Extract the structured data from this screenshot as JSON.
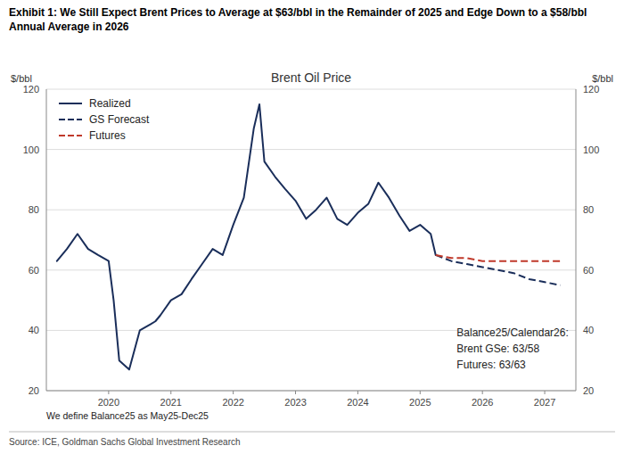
{
  "chart_data": {
    "type": "line",
    "title": "Exhibit 1: We Still Expect Brent Prices to Average at $63/bbl in the Remainder of 2025 and Edge Down to a $58/bbl Annual Average in 2026",
    "subtitle": "Brent Oil Price",
    "ylabel": "$/bbl",
    "y2label": "$/bbl",
    "annotations": [
      "Balance25/Calendar26:",
      "Brent GSe: 63/58",
      "Futures: 63/63"
    ],
    "footnote": "We define Balance25 as May25-Dec25",
    "source": "Source: ICE, Goldman Sachs Global Investment Research",
    "xlim": [
      2019.0,
      2027.5
    ],
    "xticks": [
      2020,
      2021,
      2022,
      2023,
      2024,
      2025,
      2026,
      2027
    ],
    "ylim": [
      20,
      120
    ],
    "yticks": [
      20,
      40,
      60,
      80,
      100,
      120
    ],
    "y2lim": [
      20,
      120
    ],
    "y2ticks": [
      20,
      40,
      60,
      80,
      100,
      120
    ],
    "grid": true,
    "legend": "upper left",
    "series": [
      {
        "name": "Realized",
        "color": "#1a2e5a",
        "line_style": "solid",
        "x": [
          2019.17,
          2019.33,
          2019.5,
          2019.67,
          2019.83,
          2020.0,
          2020.08,
          2020.17,
          2020.33,
          2020.5,
          2020.67,
          2020.75,
          2020.83,
          2021.0,
          2021.17,
          2021.33,
          2021.5,
          2021.67,
          2021.83,
          2022.0,
          2022.17,
          2022.33,
          2022.42,
          2022.5,
          2022.67,
          2022.83,
          2023.0,
          2023.17,
          2023.33,
          2023.5,
          2023.67,
          2023.83,
          2024.0,
          2024.17,
          2024.33,
          2024.5,
          2024.67,
          2024.83,
          2025.0,
          2025.17,
          2025.25
        ],
        "values": [
          63,
          67,
          72,
          67,
          65,
          63,
          50,
          30,
          27,
          40,
          42,
          43,
          45,
          50,
          52,
          57,
          62,
          67,
          65,
          75,
          84,
          107,
          115,
          96,
          91,
          87,
          83,
          77,
          80,
          84,
          77,
          75,
          79,
          82,
          89,
          84,
          78,
          73,
          75,
          72,
          65
        ]
      },
      {
        "name": "GS Forecast",
        "color": "#1a2e5a",
        "line_style": "dashed",
        "x": [
          2025.25,
          2025.5,
          2025.75,
          2026.0,
          2026.25,
          2026.5,
          2026.75,
          2027.0,
          2027.25
        ],
        "values": [
          65,
          63,
          62,
          61,
          60,
          59,
          57,
          56,
          55
        ]
      },
      {
        "name": "Futures",
        "color": "#c0392b",
        "line_style": "dashed",
        "x": [
          2025.25,
          2025.5,
          2025.75,
          2026.0,
          2026.25,
          2026.5,
          2026.75,
          2027.0,
          2027.25
        ],
        "values": [
          65,
          64,
          64,
          63,
          63,
          63,
          63,
          63,
          63
        ]
      }
    ]
  }
}
